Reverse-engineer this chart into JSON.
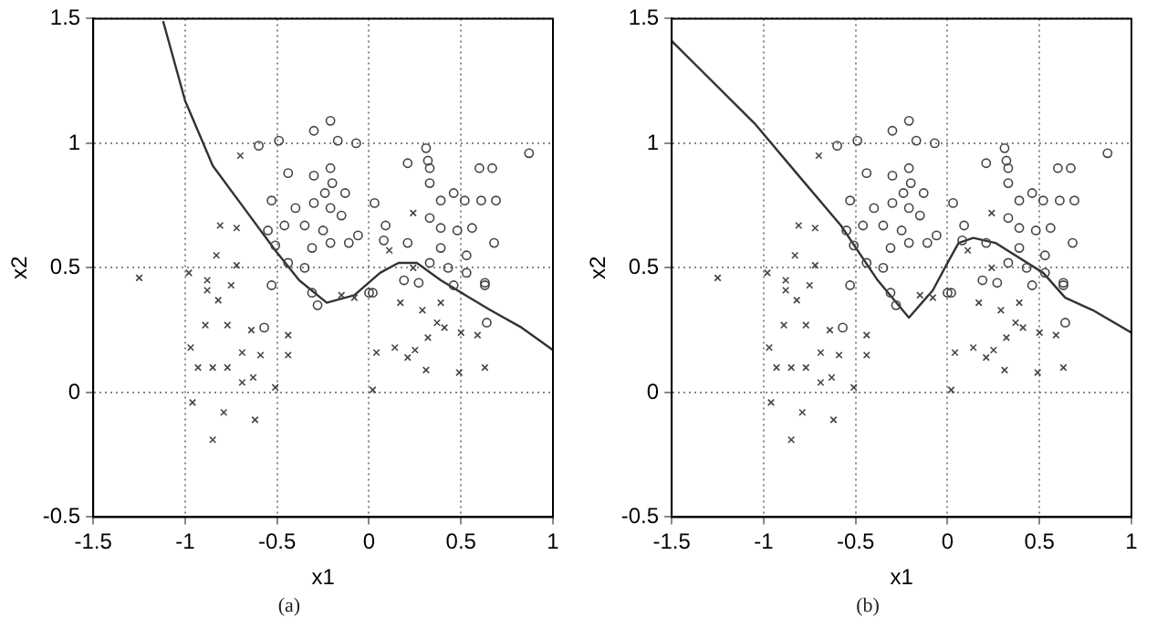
{
  "chart_data": [
    {
      "type": "scatter",
      "xlabel": "x1",
      "ylabel": "x2",
      "annotations": [
        "(a)"
      ],
      "xlim": [
        -1.5,
        1
      ],
      "ylim": [
        -0.5,
        1.5
      ],
      "xticks": [
        -1.5,
        -1,
        -0.5,
        0,
        0.5,
        1
      ],
      "yticks": [
        -0.5,
        0,
        0.5,
        1,
        1.5
      ],
      "grid": true,
      "legend": false,
      "series": [
        {
          "type": "scatter",
          "marker": "circle",
          "color": "#444444",
          "x": [
            -0.21,
            -0.3,
            -0.17,
            -0.07,
            -0.6,
            -0.49,
            0.31,
            0.32,
            0.33,
            0.21,
            0.87,
            0.6,
            0.67,
            -0.44,
            -0.3,
            -0.21,
            -0.2,
            -0.24,
            -0.13,
            -0.53,
            -0.4,
            -0.3,
            -0.21,
            0.03,
            0.33,
            0.39,
            0.46,
            0.52,
            0.61,
            0.69,
            0.33,
            -0.55,
            -0.46,
            -0.35,
            -0.25,
            -0.15,
            -0.06,
            0.09,
            0.39,
            0.48,
            0.56,
            -0.51,
            -0.31,
            -0.21,
            -0.11,
            0.08,
            0.21,
            0.39,
            0.53,
            0.68,
            -0.44,
            -0.35,
            0.33,
            0.43,
            0.53,
            0.63,
            0.19,
            0.02,
            -0.31,
            0.0,
            0.27,
            0.46,
            0.63,
            0.64,
            -0.53,
            -0.57,
            -0.28
          ],
          "values": [
            1.09,
            1.05,
            1.01,
            1.0,
            0.99,
            1.01,
            0.98,
            0.93,
            0.9,
            0.92,
            0.96,
            0.9,
            0.9,
            0.88,
            0.87,
            0.9,
            0.84,
            0.8,
            0.8,
            0.77,
            0.74,
            0.76,
            0.74,
            0.76,
            0.84,
            0.77,
            0.8,
            0.77,
            0.77,
            0.77,
            0.7,
            0.65,
            0.67,
            0.67,
            0.65,
            0.71,
            0.63,
            0.67,
            0.66,
            0.65,
            0.66,
            0.59,
            0.58,
            0.6,
            0.6,
            0.61,
            0.6,
            0.58,
            0.55,
            0.6,
            0.52,
            0.5,
            0.52,
            0.5,
            0.48,
            0.44,
            0.45,
            0.4,
            0.4,
            0.4,
            0.44,
            0.43,
            0.43,
            0.28,
            0.43,
            0.26,
            0.35
          ]
        },
        {
          "type": "scatter",
          "marker": "cross",
          "color": "#444444",
          "x": [
            -0.7,
            -0.81,
            -0.72,
            -1.25,
            -0.98,
            -0.83,
            -0.72,
            -0.88,
            0.24,
            0.11,
            0.24,
            -0.88,
            -0.82,
            -0.75,
            -0.89,
            -0.77,
            -0.97,
            -0.93,
            -0.85,
            -0.77,
            -0.69,
            -0.69,
            -0.64,
            -0.63,
            -0.59,
            -0.51,
            -0.44,
            -0.44,
            -0.96,
            -0.79,
            -0.62,
            -0.85,
            0.02,
            0.04,
            0.14,
            0.21,
            0.25,
            0.31,
            0.32,
            0.37,
            0.41,
            0.5,
            0.49,
            0.63,
            0.59,
            0.29,
            0.17,
            -0.08,
            -0.15,
            0.39
          ],
          "values": [
            0.95,
            0.67,
            0.66,
            0.46,
            0.48,
            0.55,
            0.51,
            0.45,
            0.72,
            0.57,
            0.5,
            0.41,
            0.37,
            0.43,
            0.27,
            0.27,
            0.18,
            0.1,
            0.1,
            0.1,
            0.16,
            0.04,
            0.25,
            0.06,
            0.15,
            0.02,
            0.23,
            0.15,
            -0.04,
            -0.08,
            -0.11,
            -0.19,
            0.01,
            0.16,
            0.18,
            0.14,
            0.17,
            0.09,
            0.22,
            0.28,
            0.26,
            0.24,
            0.08,
            0.1,
            0.23,
            0.33,
            0.36,
            0.38,
            0.39,
            0.36
          ]
        },
        {
          "type": "line",
          "marker": "none",
          "line_style": "solid",
          "color": "#333333",
          "x": [
            -1.12,
            -1.0,
            -0.85,
            -0.68,
            -0.51,
            -0.38,
            -0.23,
            -0.08,
            0.06,
            0.16,
            0.26,
            0.39,
            0.66,
            0.83,
            1.0
          ],
          "values": [
            1.49,
            1.17,
            0.91,
            0.74,
            0.57,
            0.45,
            0.36,
            0.39,
            0.48,
            0.52,
            0.52,
            0.45,
            0.33,
            0.26,
            0.17
          ]
        }
      ]
    },
    {
      "type": "scatter",
      "xlabel": "x1",
      "ylabel": "x2",
      "annotations": [
        "(b)"
      ],
      "xlim": [
        -1.5,
        1
      ],
      "ylim": [
        -0.5,
        1.5
      ],
      "xticks": [
        -1.5,
        -1,
        -0.5,
        0,
        0.5,
        1
      ],
      "yticks": [
        -0.5,
        0,
        0.5,
        1,
        1.5
      ],
      "grid": true,
      "legend": false,
      "series": [
        {
          "type": "scatter",
          "marker": "circle",
          "color": "#444444",
          "x": [
            -0.21,
            -0.3,
            -0.17,
            -0.07,
            -0.6,
            -0.49,
            0.31,
            0.32,
            0.33,
            0.21,
            0.87,
            0.6,
            0.67,
            -0.44,
            -0.3,
            -0.21,
            -0.2,
            -0.24,
            -0.13,
            -0.53,
            -0.4,
            -0.3,
            -0.21,
            0.03,
            0.33,
            0.39,
            0.46,
            0.52,
            0.61,
            0.69,
            0.33,
            -0.55,
            -0.46,
            -0.35,
            -0.25,
            -0.15,
            -0.06,
            0.09,
            0.39,
            0.48,
            0.56,
            -0.51,
            -0.31,
            -0.21,
            -0.11,
            0.08,
            0.21,
            0.39,
            0.53,
            0.68,
            -0.44,
            -0.35,
            0.33,
            0.43,
            0.53,
            0.63,
            0.19,
            0.02,
            -0.31,
            0.0,
            0.27,
            0.46,
            0.63,
            0.64,
            -0.53,
            -0.57,
            -0.28
          ],
          "values": [
            1.09,
            1.05,
            1.01,
            1.0,
            0.99,
            1.01,
            0.98,
            0.93,
            0.9,
            0.92,
            0.96,
            0.9,
            0.9,
            0.88,
            0.87,
            0.9,
            0.84,
            0.8,
            0.8,
            0.77,
            0.74,
            0.76,
            0.74,
            0.76,
            0.84,
            0.77,
            0.8,
            0.77,
            0.77,
            0.77,
            0.7,
            0.65,
            0.67,
            0.67,
            0.65,
            0.71,
            0.63,
            0.67,
            0.66,
            0.65,
            0.66,
            0.59,
            0.58,
            0.6,
            0.6,
            0.61,
            0.6,
            0.58,
            0.55,
            0.6,
            0.52,
            0.5,
            0.52,
            0.5,
            0.48,
            0.44,
            0.45,
            0.4,
            0.4,
            0.4,
            0.44,
            0.43,
            0.43,
            0.28,
            0.43,
            0.26,
            0.35
          ]
        },
        {
          "type": "scatter",
          "marker": "cross",
          "color": "#444444",
          "x": [
            -0.7,
            -0.81,
            -0.72,
            -1.25,
            -0.98,
            -0.83,
            -0.72,
            -0.88,
            0.24,
            0.11,
            0.24,
            -0.88,
            -0.82,
            -0.75,
            -0.89,
            -0.77,
            -0.97,
            -0.93,
            -0.85,
            -0.77,
            -0.69,
            -0.69,
            -0.64,
            -0.63,
            -0.59,
            -0.51,
            -0.44,
            -0.44,
            -0.96,
            -0.79,
            -0.62,
            -0.85,
            0.02,
            0.04,
            0.14,
            0.21,
            0.25,
            0.31,
            0.32,
            0.37,
            0.41,
            0.5,
            0.49,
            0.63,
            0.59,
            0.29,
            0.17,
            -0.08,
            -0.15,
            0.39
          ],
          "values": [
            0.95,
            0.67,
            0.66,
            0.46,
            0.48,
            0.55,
            0.51,
            0.45,
            0.72,
            0.57,
            0.5,
            0.41,
            0.37,
            0.43,
            0.27,
            0.27,
            0.18,
            0.1,
            0.1,
            0.1,
            0.16,
            0.04,
            0.25,
            0.06,
            0.15,
            0.02,
            0.23,
            0.15,
            -0.04,
            -0.08,
            -0.11,
            -0.19,
            0.01,
            0.16,
            0.18,
            0.14,
            0.17,
            0.09,
            0.22,
            0.28,
            0.26,
            0.24,
            0.08,
            0.1,
            0.23,
            0.33,
            0.36,
            0.38,
            0.39,
            0.36
          ]
        },
        {
          "type": "line",
          "marker": "none",
          "line_style": "solid",
          "color": "#333333",
          "x": [
            -1.5,
            -1.05,
            -0.81,
            -0.58,
            -0.38,
            -0.21,
            -0.08,
            0.0,
            0.06,
            0.14,
            0.26,
            0.52,
            0.64,
            0.79,
            1.0
          ],
          "values": [
            1.41,
            1.08,
            0.87,
            0.67,
            0.45,
            0.3,
            0.41,
            0.52,
            0.6,
            0.62,
            0.6,
            0.48,
            0.38,
            0.33,
            0.24
          ]
        }
      ]
    }
  ]
}
